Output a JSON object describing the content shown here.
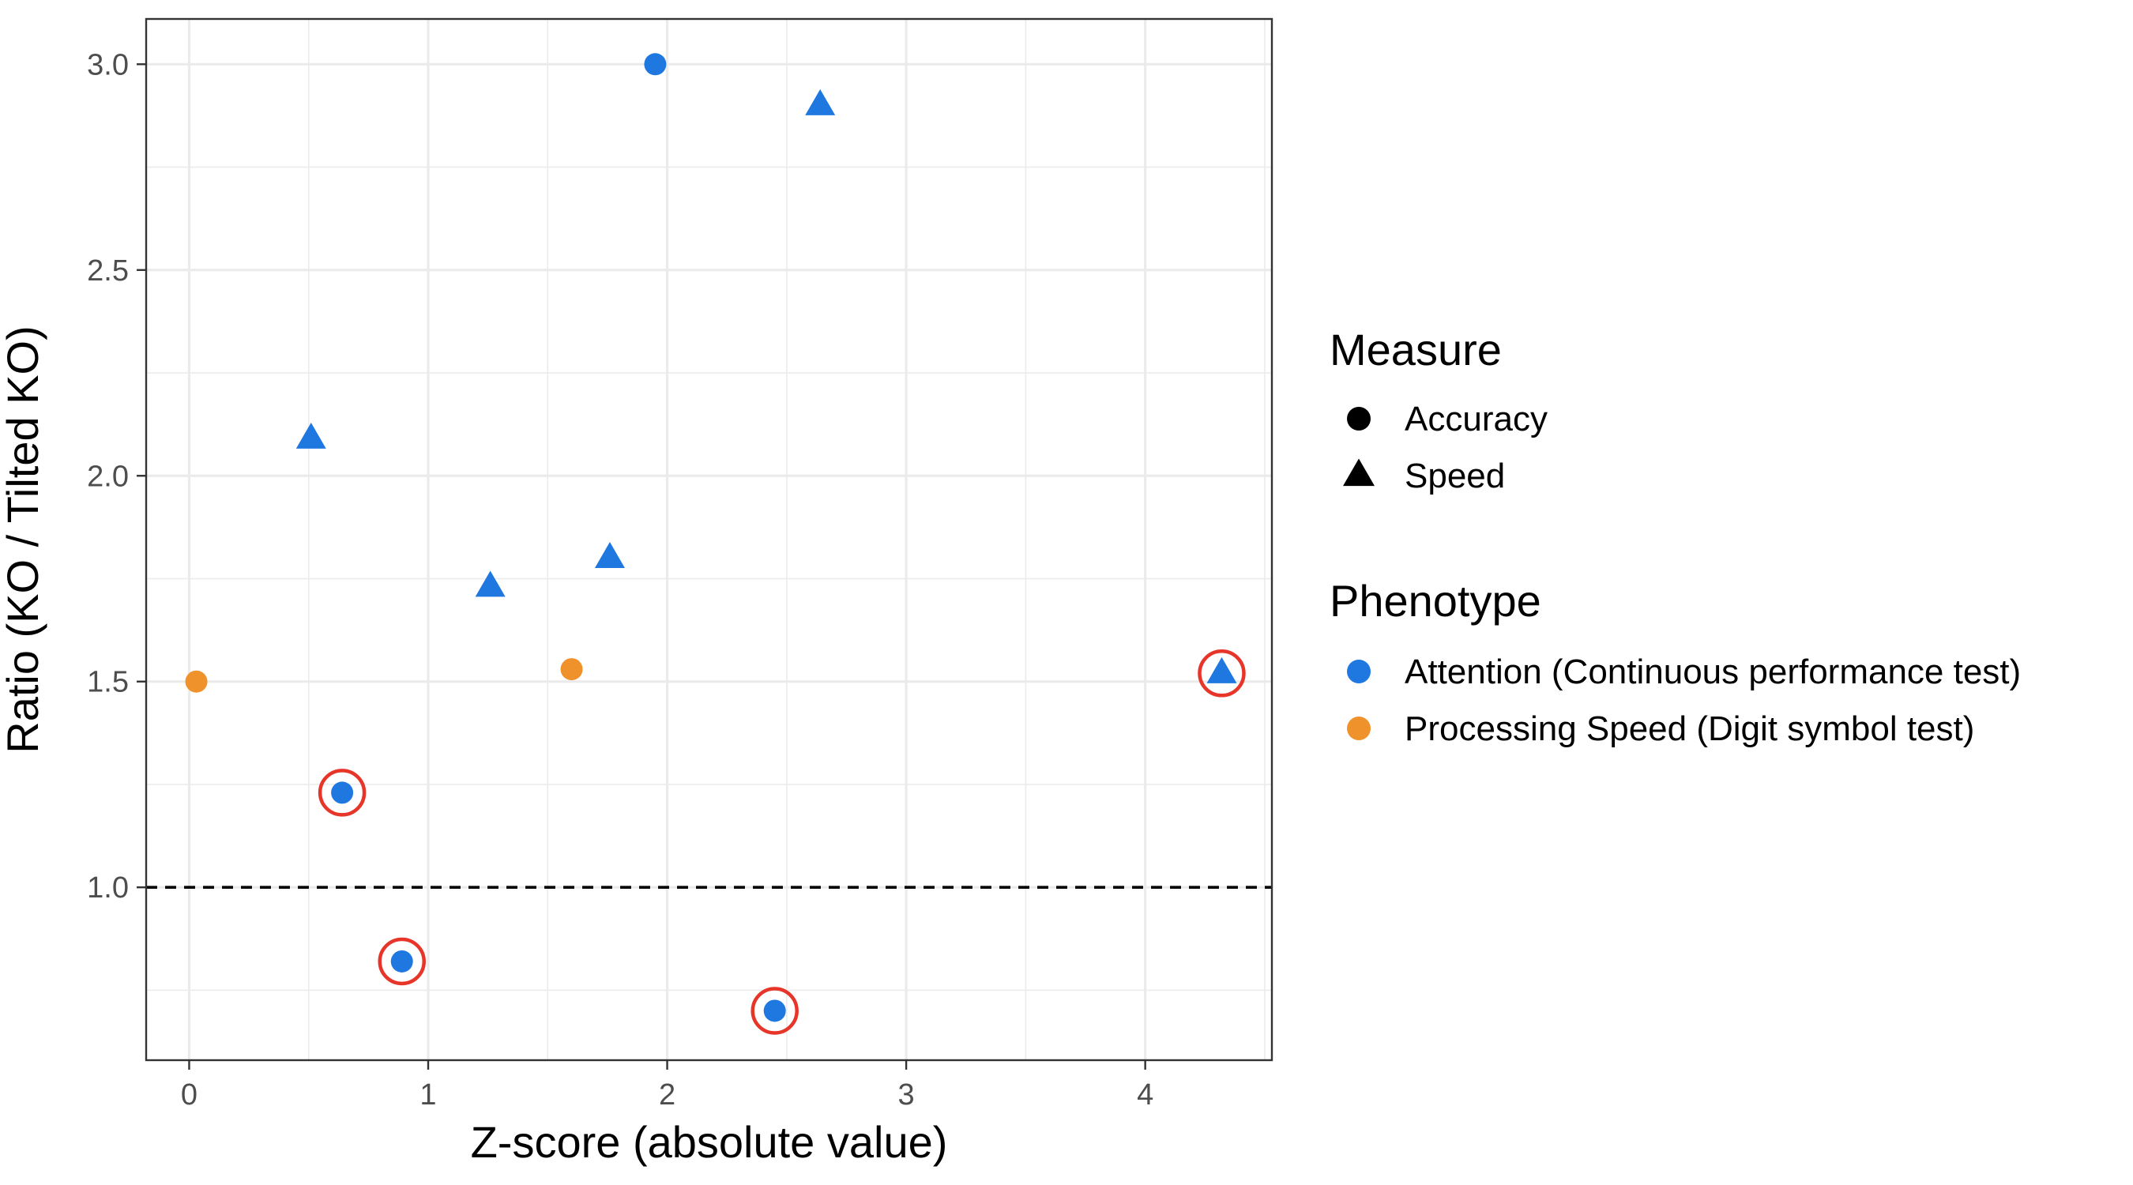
{
  "chart_data": {
    "type": "scatter",
    "xlabel": "Z-score (absolute value)",
    "ylabel": "Ratio (KO / Tilted KO)",
    "xlim": [
      -0.18,
      4.53
    ],
    "ylim": [
      0.58,
      3.11
    ],
    "x_ticks": [
      0,
      1,
      2,
      3,
      4
    ],
    "x_tick_labels": [
      "0",
      "1",
      "2",
      "3",
      "4"
    ],
    "y_ticks": [
      1.0,
      1.5,
      2.0,
      2.5,
      3.0
    ],
    "y_tick_labels": [
      "1.0",
      "1.5",
      "2.0",
      "2.5",
      "3.0"
    ],
    "grid": true,
    "reference_line": {
      "y": 1.0,
      "style": "dashed"
    },
    "legend": {
      "placement": "right",
      "measure": {
        "title": "Measure",
        "items": [
          {
            "label": "Accuracy",
            "shape": "circle"
          },
          {
            "label": "Speed",
            "shape": "triangle"
          }
        ]
      },
      "phenotype": {
        "title": "Phenotype",
        "items": [
          {
            "label": "Attention (Continuous performance test)",
            "color": "#1E78E0"
          },
          {
            "label": "Processing Speed (Digit symbol test)",
            "color": "#F0922B"
          }
        ]
      }
    },
    "colors": {
      "Attention": "#1E78E0",
      "Processing Speed": "#F0922B",
      "highlight": "#E8352A",
      "gridline": "#EBEBEB",
      "panel_border": "#333333"
    },
    "points": [
      {
        "x": 0.03,
        "y": 1.5,
        "measure": "Accuracy",
        "phenotype": "Processing Speed",
        "highlight": false
      },
      {
        "x": 0.51,
        "y": 2.09,
        "measure": "Speed",
        "phenotype": "Attention",
        "highlight": false
      },
      {
        "x": 0.64,
        "y": 1.23,
        "measure": "Accuracy",
        "phenotype": "Attention",
        "highlight": true
      },
      {
        "x": 0.89,
        "y": 0.82,
        "measure": "Accuracy",
        "phenotype": "Attention",
        "highlight": true
      },
      {
        "x": 1.26,
        "y": 1.73,
        "measure": "Speed",
        "phenotype": "Attention",
        "highlight": false
      },
      {
        "x": 1.6,
        "y": 1.53,
        "measure": "Accuracy",
        "phenotype": "Processing Speed",
        "highlight": false
      },
      {
        "x": 1.76,
        "y": 1.8,
        "measure": "Speed",
        "phenotype": "Attention",
        "highlight": false
      },
      {
        "x": 1.95,
        "y": 3.0,
        "measure": "Accuracy",
        "phenotype": "Attention",
        "highlight": false
      },
      {
        "x": 2.45,
        "y": 0.7,
        "measure": "Accuracy",
        "phenotype": "Attention",
        "highlight": true
      },
      {
        "x": 2.64,
        "y": 2.9,
        "measure": "Speed",
        "phenotype": "Attention",
        "highlight": false
      },
      {
        "x": 4.32,
        "y": 1.52,
        "measure": "Speed",
        "phenotype": "Attention",
        "highlight": true
      }
    ]
  }
}
